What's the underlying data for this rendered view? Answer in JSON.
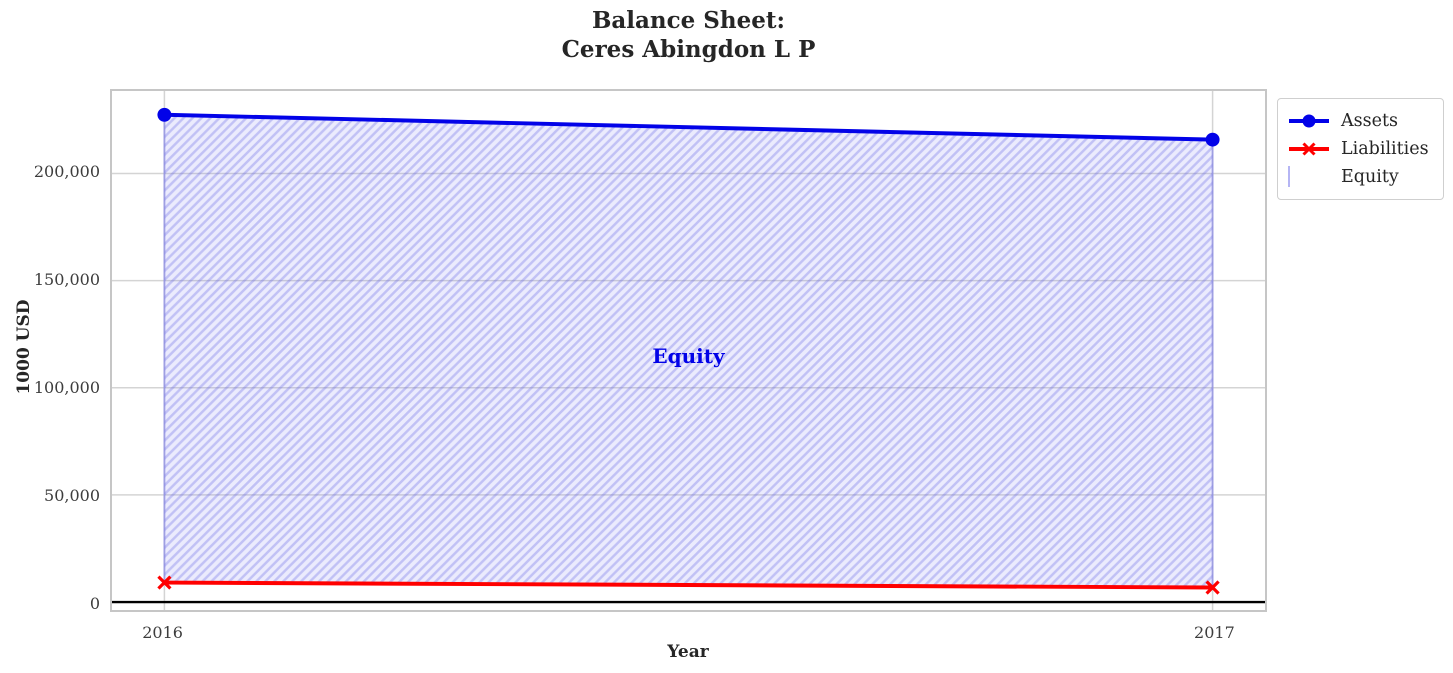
{
  "figure": {
    "title_line1": "Balance Sheet:",
    "title_line2": "Ceres Abingdon L P",
    "background": "#ffffff"
  },
  "axes": {
    "xlabel": "Year",
    "ylabel": "1000 USD"
  },
  "legend": {
    "items": [
      {
        "label": "Assets",
        "swatch": "blue-line-circle-marker"
      },
      {
        "label": "Liabilities",
        "swatch": "red-line-x-marker"
      },
      {
        "label": "Equity",
        "swatch": "lavender-hatched-patch"
      }
    ]
  },
  "chart_data": {
    "type": "line",
    "title": "Balance Sheet: Ceres Abingdon L P",
    "xlabel": "Year",
    "ylabel": "1000 USD",
    "x": [
      2016,
      2017
    ],
    "series": [
      {
        "name": "Assets",
        "values": [
          227400,
          215800
        ],
        "color": "#0202e8",
        "marker": "circle",
        "line_width": 4
      },
      {
        "name": "Liabilities",
        "values": [
          9100,
          6800
        ],
        "color": "#ff0000",
        "marker": "x",
        "line_width": 4
      }
    ],
    "area": {
      "label": "Equity",
      "between": [
        "Liabilities",
        "Assets"
      ],
      "fill_color": "rgba(130,130,240,0.16)",
      "hatch": "/",
      "hatch_color": "rgba(95,95,230,0.30)",
      "edge_color": "rgba(115,115,235,0.50)"
    },
    "annotation": {
      "text": "Equity",
      "x": 2016.5,
      "y": 115000,
      "color": "#0202e8"
    },
    "xticks": [
      2016,
      2017
    ],
    "xtick_labels": [
      "2016",
      "2017"
    ],
    "yticks": [
      0,
      50000,
      100000,
      150000,
      200000
    ],
    "ytick_labels": [
      "0",
      "50,000",
      "100,000",
      "150,000",
      "200,000"
    ],
    "xlim": [
      2015.95,
      2017.05
    ],
    "ylim": [
      -3700,
      238500
    ],
    "grid": true,
    "grid_color": "#d4d4d4",
    "zero_line": true,
    "zero_line_color": "#000000",
    "legend_position": "outside upper right"
  }
}
